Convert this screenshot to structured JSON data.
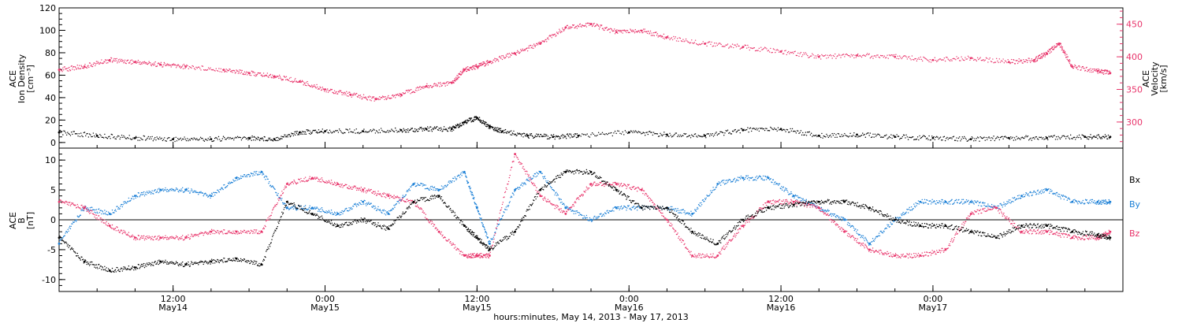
{
  "colors": {
    "black": "#000000",
    "density": "#000000",
    "velocity": "#e8336a",
    "bx": "#000000",
    "by": "#1a7fd6",
    "bz": "#e8336a",
    "frame": "#000000"
  },
  "labels": {
    "top_left_axis": [
      "ACE",
      "Ion Density",
      "[cm⁻³]"
    ],
    "top_right_axis": [
      "ACE",
      "Velocity",
      "[km/s]"
    ],
    "bottom_left_axis": [
      "ACE",
      "B",
      "[nT]"
    ],
    "legend": [
      "Bx",
      "By",
      "Bz"
    ],
    "xtitle": "hours:minutes, May 14, 2013 - May 17, 2013",
    "time_ticks": [
      "12:00",
      "0:00",
      "12:00",
      "0:00",
      "12:00",
      "0:00"
    ],
    "date_ticks": [
      "May14",
      "May15",
      "May15",
      "May16",
      "May16",
      "May17"
    ]
  },
  "chart_data": [
    {
      "type": "scatter",
      "panel": "top",
      "x_unit": "hours since 00:00 May 14, 2013",
      "xlim": [
        3,
        87
      ],
      "ylim_left": [
        -5,
        120
      ],
      "yticks_left": [
        0,
        20,
        40,
        60,
        80,
        100,
        120
      ],
      "ylim_right": [
        260,
        475
      ],
      "yticks_right": [
        300,
        350,
        400,
        450
      ],
      "series": [
        {
          "name": "Ion Density",
          "axis": "left",
          "x": [
            3,
            6,
            9,
            12,
            15,
            18,
            20,
            22,
            24,
            27,
            30,
            32,
            34,
            35,
            36,
            37,
            38,
            40,
            42,
            44,
            48,
            51,
            54,
            57,
            60,
            63,
            66,
            69,
            72,
            75,
            78,
            81,
            84,
            86
          ],
          "y": [
            9,
            6,
            4,
            3,
            3,
            4,
            3,
            9,
            10,
            10,
            11,
            12,
            12,
            18,
            22,
            14,
            10,
            6,
            5,
            6,
            9,
            7,
            6,
            11,
            12,
            6,
            7,
            5,
            4,
            3,
            4,
            4,
            5,
            5
          ]
        },
        {
          "name": "Velocity",
          "axis": "right",
          "x": [
            3,
            5,
            7,
            9,
            11,
            13,
            16,
            18,
            20,
            22,
            24,
            26,
            28,
            30,
            32,
            34,
            35,
            36,
            37,
            39,
            41,
            43,
            45,
            47,
            49,
            51,
            54,
            57,
            60,
            63,
            66,
            69,
            72,
            75,
            78,
            80,
            81,
            82,
            83,
            85,
            86
          ],
          "y": [
            380,
            385,
            395,
            392,
            388,
            385,
            380,
            375,
            370,
            362,
            350,
            342,
            335,
            342,
            355,
            360,
            380,
            385,
            392,
            405,
            420,
            445,
            450,
            438,
            440,
            430,
            420,
            415,
            408,
            400,
            402,
            400,
            395,
            398,
            392,
            395,
            405,
            420,
            385,
            378,
            375
          ]
        }
      ]
    },
    {
      "type": "scatter",
      "panel": "bottom",
      "x_unit": "hours since 00:00 May 14, 2013",
      "xlim": [
        3,
        87
      ],
      "ylim": [
        -12,
        12
      ],
      "yticks": [
        -10,
        -5,
        0,
        5,
        10
      ],
      "series": [
        {
          "name": "Bx",
          "x": [
            3,
            5,
            7,
            9,
            11,
            13,
            15,
            17,
            19,
            21,
            23,
            25,
            27,
            29,
            31,
            33,
            35,
            36,
            37,
            39,
            41,
            43,
            45,
            47,
            49,
            51,
            53,
            55,
            57,
            59,
            61,
            63,
            65,
            67,
            69,
            71,
            73,
            75,
            77,
            79,
            81,
            83,
            85,
            86
          ],
          "y": [
            -3,
            -7,
            -8.5,
            -8,
            -7,
            -7.5,
            -7,
            -6.5,
            -7.5,
            3,
            1,
            -1,
            0,
            -1.5,
            3,
            4,
            -1,
            -3,
            -5,
            -2,
            5,
            8,
            8,
            5,
            2,
            2,
            -2,
            -4,
            0,
            2,
            2.5,
            3,
            3,
            2,
            0,
            -1,
            -1,
            -2,
            -3,
            -1,
            -1,
            -2,
            -2.5,
            -3
          ]
        },
        {
          "name": "By",
          "x": [
            3,
            5,
            7,
            9,
            11,
            13,
            15,
            17,
            19,
            21,
            23,
            25,
            27,
            29,
            31,
            33,
            35,
            36,
            37,
            39,
            41,
            43,
            45,
            47,
            49,
            51,
            53,
            55,
            57,
            59,
            61,
            63,
            65,
            67,
            69,
            71,
            73,
            75,
            77,
            79,
            81,
            83,
            85,
            86
          ],
          "y": [
            -4,
            2,
            1,
            4,
            5,
            5,
            4,
            7,
            8,
            2,
            2,
            1,
            3,
            1,
            6,
            5,
            8,
            2,
            -4,
            5,
            8,
            2,
            0,
            2,
            2,
            2,
            1,
            6,
            7,
            7,
            4,
            2,
            0,
            -4,
            0,
            3,
            3,
            3,
            2,
            4,
            5,
            3,
            3,
            3
          ]
        },
        {
          "name": "Bz",
          "x": [
            3,
            5,
            7,
            9,
            11,
            13,
            15,
            17,
            19,
            21,
            23,
            25,
            27,
            29,
            31,
            33,
            35,
            36,
            37,
            39,
            41,
            43,
            45,
            47,
            49,
            51,
            53,
            55,
            57,
            59,
            61,
            63,
            65,
            67,
            69,
            71,
            73,
            75,
            77,
            79,
            81,
            83,
            85,
            86
          ],
          "y": [
            3,
            2,
            -1,
            -3,
            -3,
            -3,
            -2,
            -2,
            -2,
            6,
            7,
            6,
            5,
            4,
            3,
            -2,
            -6,
            -6,
            -6,
            11,
            4,
            1,
            6,
            6,
            5,
            0,
            -6,
            -6,
            -1,
            3,
            3,
            2,
            -2,
            -5,
            -6,
            -6,
            -5,
            1,
            2,
            -2,
            -2,
            -3,
            -3,
            -2
          ]
        }
      ]
    }
  ]
}
